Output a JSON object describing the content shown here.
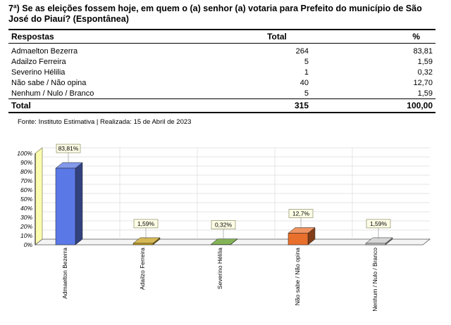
{
  "question": "7ª) Se as eleições fossem hoje, em quem o (a) senhor (a) votaria para Prefeito do município de São José do Piauí? (Espontânea)",
  "table": {
    "headers": [
      "Respostas",
      "Total",
      "%"
    ],
    "rows": [
      {
        "label": "Admaelton Bezerra",
        "total": "264",
        "pct": "83,81"
      },
      {
        "label": "Adailzo Ferreira",
        "total": "5",
        "pct": "1,59"
      },
      {
        "label": "Severino Hélilia",
        "total": "1",
        "pct": "0,32"
      },
      {
        "label": "Não sabe / Não opina",
        "total": "40",
        "pct": "12,70"
      },
      {
        "label": "Nenhum / Nulo / Branco",
        "total": "5",
        "pct": "1,59"
      }
    ],
    "total_row": {
      "label": "Total",
      "total": "315",
      "pct": "100,00"
    }
  },
  "source": "Fonte: Instituto Estimativa | Realizada: 15 de Abril de 2023",
  "chart_data": {
    "type": "bar",
    "categories": [
      "Admaelton Bezerra",
      "Adailzo Ferreira",
      "Severino Hélilia",
      "Não sabe / Não opina",
      "Nenhum / Nulo / Branco"
    ],
    "values": [
      83.81,
      1.59,
      0.32,
      12.7,
      1.59
    ],
    "data_labels": [
      "83,81%",
      "1,59%",
      "0,32%",
      "12,7%",
      "1,59%"
    ],
    "y_ticks": [
      "0%",
      "10%",
      "20%",
      "30%",
      "40%",
      "50%",
      "60%",
      "70%",
      "80%",
      "90%",
      "100%"
    ],
    "ylim": [
      0,
      100
    ],
    "grid": true,
    "colors": [
      "#5a78e6",
      "#c8a21e",
      "#5a9a1e",
      "#e86f2c",
      "#c8c8c8"
    ]
  }
}
